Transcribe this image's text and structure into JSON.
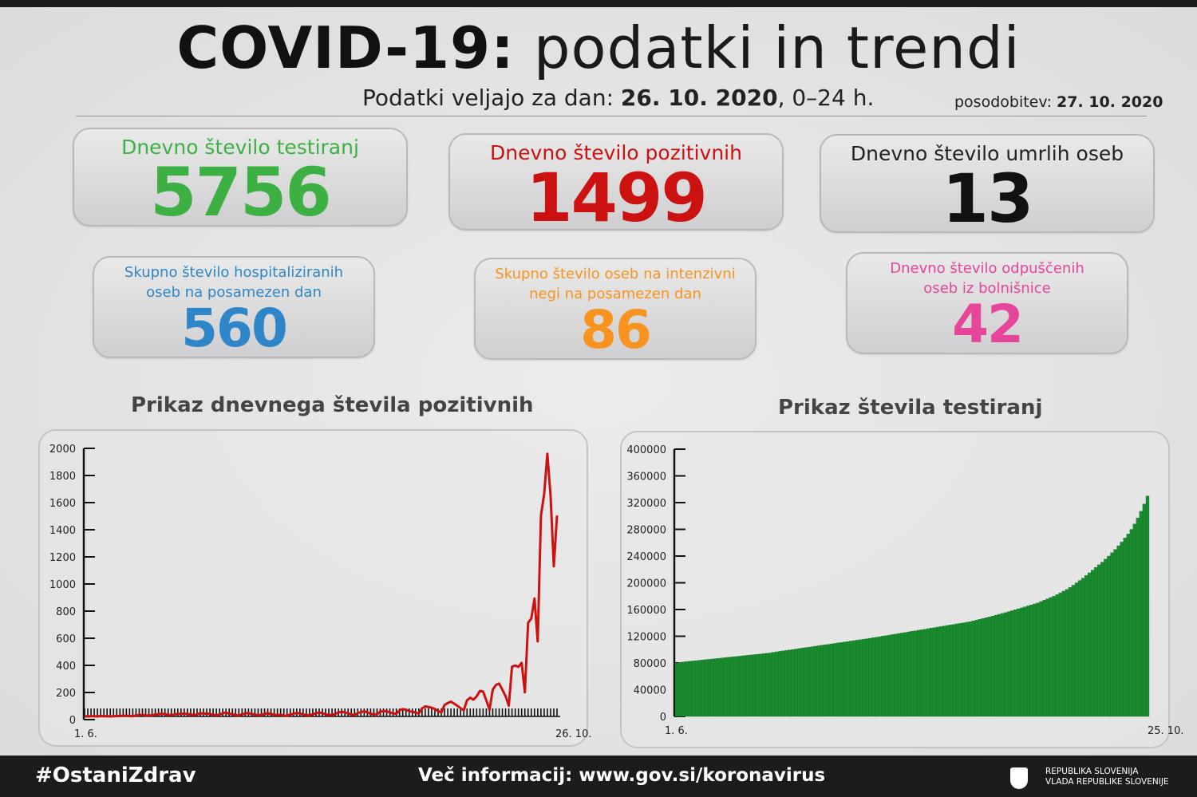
{
  "header": {
    "title_bold": "COVID-19:",
    "title_rest": " podatki in trendi",
    "subtitle_prefix": "Podatki veljajo za dan: ",
    "subtitle_date": "26. 10. 2020",
    "subtitle_suffix": ", 0–24 h.",
    "update_label": "posodobitev: ",
    "update_date": "27. 10. 2020"
  },
  "stats": [
    {
      "label": "Dnevno število testiranj",
      "value": "5756",
      "color": "#3cb043"
    },
    {
      "label": "Dnevno število pozitivnih",
      "value": "1499",
      "color": "#cc1111"
    },
    {
      "label": "Dnevno število umrlih oseb",
      "value": "13",
      "color": "#111111"
    },
    {
      "label": "Skupno število hospitaliziranih oseb na posamezen dan",
      "value": "560",
      "color": "#2e86c8"
    },
    {
      "label": "Skupno število oseb na intenzivni negi na posamezen dan",
      "value": "86",
      "color": "#f7931e"
    },
    {
      "label": "Dnevno število odpuščenih oseb iz bolnišnice",
      "value": "42",
      "color": "#e6459a"
    }
  ],
  "chart_data": [
    {
      "type": "line",
      "title": "Prikaz dnevnega števila pozitivnih",
      "x_start": "1. 6.",
      "x_end": "26. 10.",
      "ylim": [
        0,
        2000
      ],
      "yticks": [
        "0",
        "200",
        "400",
        "600",
        "800",
        "1000",
        "1200",
        "1400",
        "1600",
        "1800",
        "2000"
      ],
      "color": "#cc1111",
      "grid": false,
      "values": [
        1,
        0,
        2,
        1,
        0,
        3,
        2,
        1,
        0,
        2,
        3,
        5,
        4,
        6,
        3,
        2,
        8,
        10,
        12,
        6,
        9,
        7,
        14,
        16,
        20,
        18,
        12,
        10,
        15,
        20,
        18,
        22,
        17,
        15,
        10,
        14,
        25,
        20,
        22,
        18,
        12,
        9,
        15,
        24,
        28,
        20,
        18,
        10,
        8,
        16,
        22,
        25,
        18,
        15,
        9,
        11,
        20,
        24,
        17,
        14,
        10,
        12,
        8,
        5,
        14,
        20,
        25,
        22,
        15,
        10,
        8,
        18,
        22,
        30,
        24,
        16,
        12,
        10,
        20,
        28,
        35,
        30,
        22,
        14,
        12,
        25,
        32,
        38,
        30,
        20,
        15,
        18,
        35,
        40,
        38,
        30,
        22,
        20,
        45,
        55,
        50,
        40,
        35,
        28,
        22,
        60,
        75,
        70,
        65,
        55,
        40,
        30,
        85,
        100,
        110,
        95,
        80,
        60,
        45,
        120,
        140,
        125,
        150,
        190,
        185,
        120,
        50,
        200,
        235,
        245,
        200,
        150,
        80,
        370,
        380,
        370,
        400,
        180,
        700,
        730,
        880,
        560,
        1500,
        1660,
        1960,
        1650,
        1120,
        1499
      ]
    },
    {
      "type": "bar",
      "title": "Prikaz števila testiranj",
      "x_start": "1. 6.",
      "x_end": "25. 10.",
      "ylim": [
        0,
        400000
      ],
      "yticks": [
        "0",
        "40000",
        "80000",
        "120000",
        "160000",
        "200000",
        "240000",
        "280000",
        "320000",
        "360000",
        "400000"
      ],
      "color": "#1a8a2e",
      "grid": false,
      "values": [
        80000,
        81000,
        81500,
        82000,
        82500,
        83000,
        83500,
        84000,
        84500,
        85000,
        85500,
        86000,
        86500,
        87000,
        87500,
        88000,
        88500,
        89000,
        89500,
        90000,
        90500,
        91000,
        91500,
        92000,
        92500,
        93000,
        93500,
        94000,
        94500,
        95000,
        96000,
        96700,
        97400,
        98100,
        98800,
        99500,
        100200,
        100900,
        101600,
        102300,
        103000,
        103700,
        104400,
        105100,
        105800,
        106500,
        107200,
        107900,
        108600,
        109300,
        110000,
        110700,
        111400,
        112100,
        112800,
        113500,
        114200,
        114900,
        115600,
        116300,
        117000,
        117800,
        118600,
        119400,
        120200,
        121000,
        121800,
        122600,
        123400,
        124200,
        125000,
        125800,
        126600,
        127400,
        128200,
        129000,
        129800,
        130600,
        131400,
        132200,
        133000,
        133800,
        134600,
        135400,
        136200,
        137000,
        137800,
        138600,
        139400,
        140200,
        141000,
        141800,
        143000,
        144200,
        145400,
        146600,
        147800,
        149000,
        150300,
        151600,
        152900,
        154200,
        155500,
        156900,
        158300,
        159700,
        161100,
        162500,
        164000,
        165500,
        167000,
        168500,
        170000,
        172000,
        174000,
        176000,
        178000,
        180000,
        182500,
        185000,
        187500,
        190000,
        193000,
        196500,
        200000,
        203500,
        207000,
        211000,
        215000,
        219000,
        223000,
        227000,
        231000,
        235500,
        240000,
        245000,
        250000,
        255500,
        261000,
        267000,
        273000,
        280000,
        288000,
        297000,
        307000,
        318000,
        330000
      ]
    }
  ],
  "footer": {
    "hashtag": "#OstaniZdrav",
    "more_info": "Več informacij: www.gov.si/koronavirus",
    "gov_line1": "REPUBLIKA SLOVENIJA",
    "gov_line2": "VLADA REPUBLIKE SLOVENIJE"
  }
}
